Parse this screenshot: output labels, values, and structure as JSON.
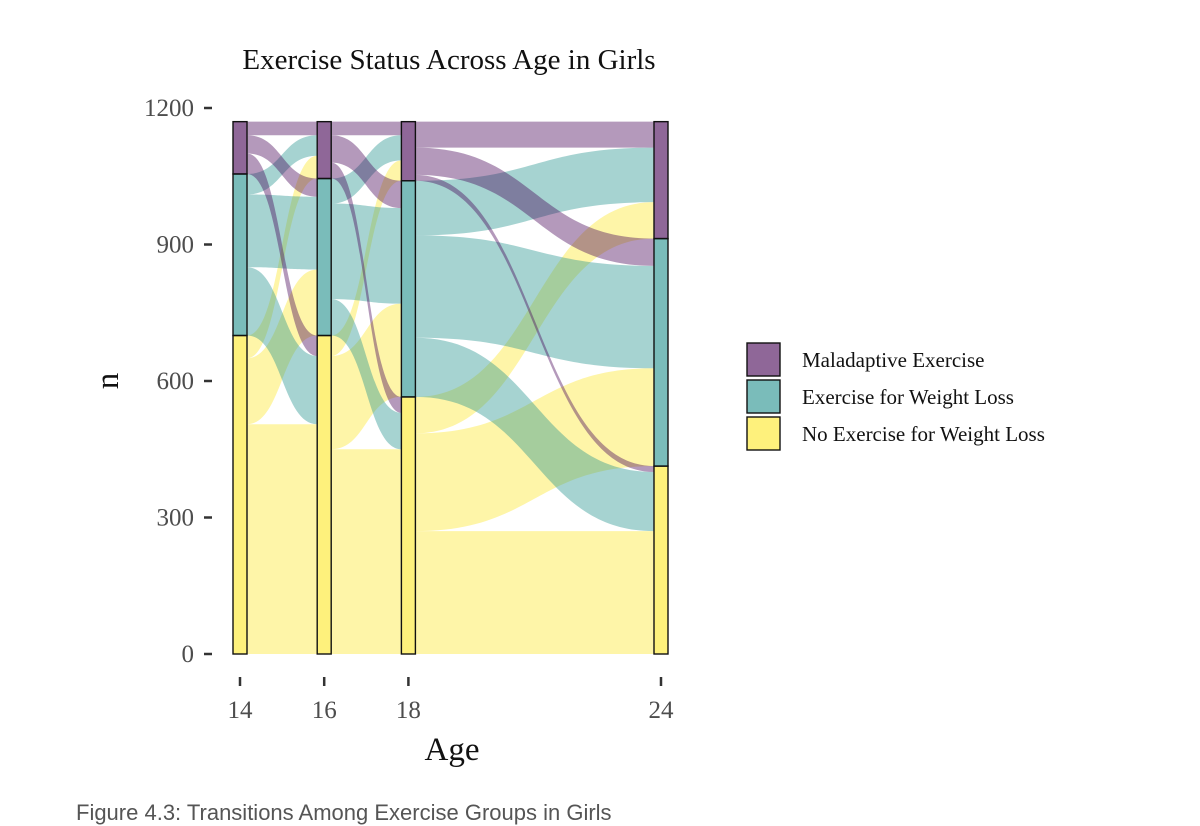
{
  "caption": "Figure 4.3: Transitions Among Exercise Groups in Girls",
  "chart_data": {
    "type": "alluvial",
    "title": "Exercise Status Across Age in Girls",
    "xlabel": "Age",
    "ylabel": "n",
    "ylim": [
      0,
      1200
    ],
    "yticks": [
      0,
      300,
      600,
      900,
      1200
    ],
    "ages": [
      14,
      16,
      18,
      24
    ],
    "xlim": [
      13.5,
      24.5
    ],
    "grid": false,
    "legend_position": "right",
    "categories": [
      {
        "name": "No Exercise for Weight Loss",
        "color": "#FDE725"
      },
      {
        "name": "Exercise for Weight Loss",
        "color": "#21908C"
      },
      {
        "name": "Maladaptive Exercise",
        "color": "#440154"
      }
    ],
    "legend_order": [
      "Maladaptive Exercise",
      "Exercise for Weight Loss",
      "No Exercise for Weight Loss"
    ],
    "stratum_counts": {
      "14": [
        700,
        355,
        115
      ],
      "16": [
        700,
        345,
        125
      ],
      "18": [
        565,
        475,
        130
      ],
      "24": [
        413,
        500,
        257
      ]
    },
    "flows": [
      {
        "from_age": 14,
        "to_age": 16,
        "from": "No Exercise for Weight Loss",
        "to": "No Exercise for Weight Loss",
        "value": 505
      },
      {
        "from_age": 14,
        "to_age": 16,
        "from": "No Exercise for Weight Loss",
        "to": "Exercise for Weight Loss",
        "value": 145
      },
      {
        "from_age": 14,
        "to_age": 16,
        "from": "No Exercise for Weight Loss",
        "to": "Maladaptive Exercise",
        "value": 50
      },
      {
        "from_age": 14,
        "to_age": 16,
        "from": "Exercise for Weight Loss",
        "to": "No Exercise for Weight Loss",
        "value": 150
      },
      {
        "from_age": 14,
        "to_age": 16,
        "from": "Exercise for Weight Loss",
        "to": "Exercise for Weight Loss",
        "value": 160
      },
      {
        "from_age": 14,
        "to_age": 16,
        "from": "Exercise for Weight Loss",
        "to": "Maladaptive Exercise",
        "value": 45
      },
      {
        "from_age": 14,
        "to_age": 16,
        "from": "Maladaptive Exercise",
        "to": "No Exercise for Weight Loss",
        "value": 45
      },
      {
        "from_age": 14,
        "to_age": 16,
        "from": "Maladaptive Exercise",
        "to": "Exercise for Weight Loss",
        "value": 40
      },
      {
        "from_age": 14,
        "to_age": 16,
        "from": "Maladaptive Exercise",
        "to": "Maladaptive Exercise",
        "value": 30
      },
      {
        "from_age": 16,
        "to_age": 18,
        "from": "No Exercise for Weight Loss",
        "to": "No Exercise for Weight Loss",
        "value": 450
      },
      {
        "from_age": 16,
        "to_age": 18,
        "from": "No Exercise for Weight Loss",
        "to": "Exercise for Weight Loss",
        "value": 205
      },
      {
        "from_age": 16,
        "to_age": 18,
        "from": "No Exercise for Weight Loss",
        "to": "Maladaptive Exercise",
        "value": 45
      },
      {
        "from_age": 16,
        "to_age": 18,
        "from": "Exercise for Weight Loss",
        "to": "No Exercise for Weight Loss",
        "value": 80
      },
      {
        "from_age": 16,
        "to_age": 18,
        "from": "Exercise for Weight Loss",
        "to": "Exercise for Weight Loss",
        "value": 210
      },
      {
        "from_age": 16,
        "to_age": 18,
        "from": "Exercise for Weight Loss",
        "to": "Maladaptive Exercise",
        "value": 55
      },
      {
        "from_age": 16,
        "to_age": 18,
        "from": "Maladaptive Exercise",
        "to": "No Exercise for Weight Loss",
        "value": 35
      },
      {
        "from_age": 16,
        "to_age": 18,
        "from": "Maladaptive Exercise",
        "to": "Exercise for Weight Loss",
        "value": 60
      },
      {
        "from_age": 16,
        "to_age": 18,
        "from": "Maladaptive Exercise",
        "to": "Maladaptive Exercise",
        "value": 30
      },
      {
        "from_age": 18,
        "to_age": 24,
        "from": "No Exercise for Weight Loss",
        "to": "No Exercise for Weight Loss",
        "value": 270
      },
      {
        "from_age": 18,
        "to_age": 24,
        "from": "No Exercise for Weight Loss",
        "to": "Exercise for Weight Loss",
        "value": 215
      },
      {
        "from_age": 18,
        "to_age": 24,
        "from": "No Exercise for Weight Loss",
        "to": "Maladaptive Exercise",
        "value": 80
      },
      {
        "from_age": 18,
        "to_age": 24,
        "from": "Exercise for Weight Loss",
        "to": "No Exercise for Weight Loss",
        "value": 130
      },
      {
        "from_age": 18,
        "to_age": 24,
        "from": "Exercise for Weight Loss",
        "to": "Exercise for Weight Loss",
        "value": 225
      },
      {
        "from_age": 18,
        "to_age": 24,
        "from": "Exercise for Weight Loss",
        "to": "Maladaptive Exercise",
        "value": 120
      },
      {
        "from_age": 18,
        "to_age": 24,
        "from": "Maladaptive Exercise",
        "to": "No Exercise for Weight Loss",
        "value": 13
      },
      {
        "from_age": 18,
        "to_age": 24,
        "from": "Maladaptive Exercise",
        "to": "Exercise for Weight Loss",
        "value": 60
      },
      {
        "from_age": 18,
        "to_age": 24,
        "from": "Maladaptive Exercise",
        "to": "Maladaptive Exercise",
        "value": 57
      }
    ]
  }
}
